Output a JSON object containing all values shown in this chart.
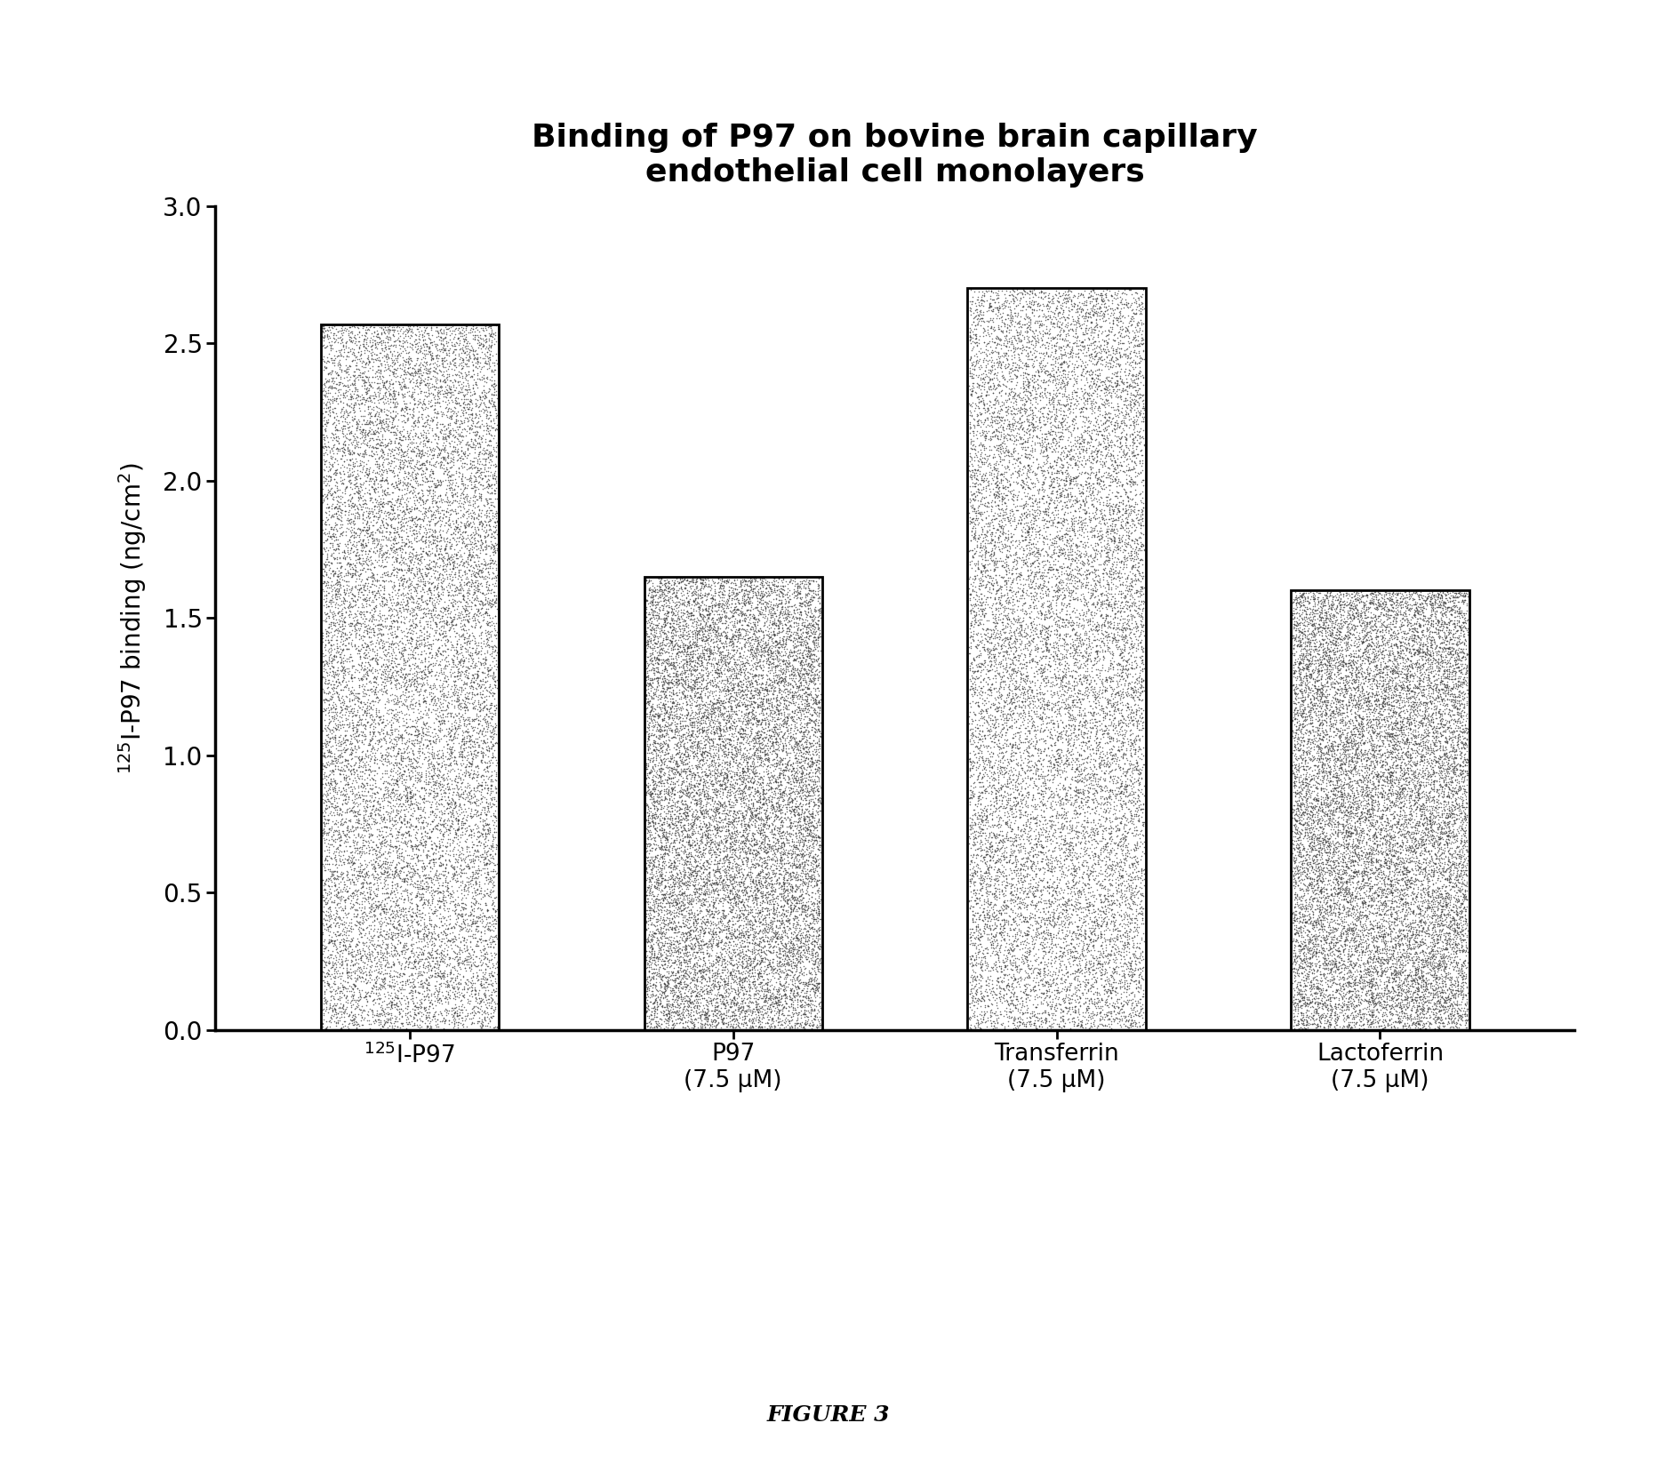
{
  "title_line1": "Binding of P97 on bovine brain capillary",
  "title_line2": "endothelial cell monolayers",
  "categories": [
    "$^{125}$I-P97",
    "P97\n(7.5 μM)",
    "Transferrin\n(7.5 μM)",
    "Lactoferrin\n(7.5 μM)"
  ],
  "values": [
    2.57,
    1.65,
    2.7,
    1.6
  ],
  "bar_color": "#808080",
  "ylabel": "$^{125}$I-P97 binding (ng/cm$^{2}$)",
  "ylim": [
    0,
    3.0
  ],
  "yticks": [
    0,
    0.5,
    1.0,
    1.5,
    2.0,
    2.5,
    3.0
  ],
  "figure_label": "FIGURE 3",
  "background_color": "#ffffff",
  "bar_width": 0.55,
  "title_fontsize": 26,
  "tick_fontsize": 20,
  "ylabel_fontsize": 20,
  "xlabel_fontsize": 19,
  "figure_label_fontsize": 18
}
